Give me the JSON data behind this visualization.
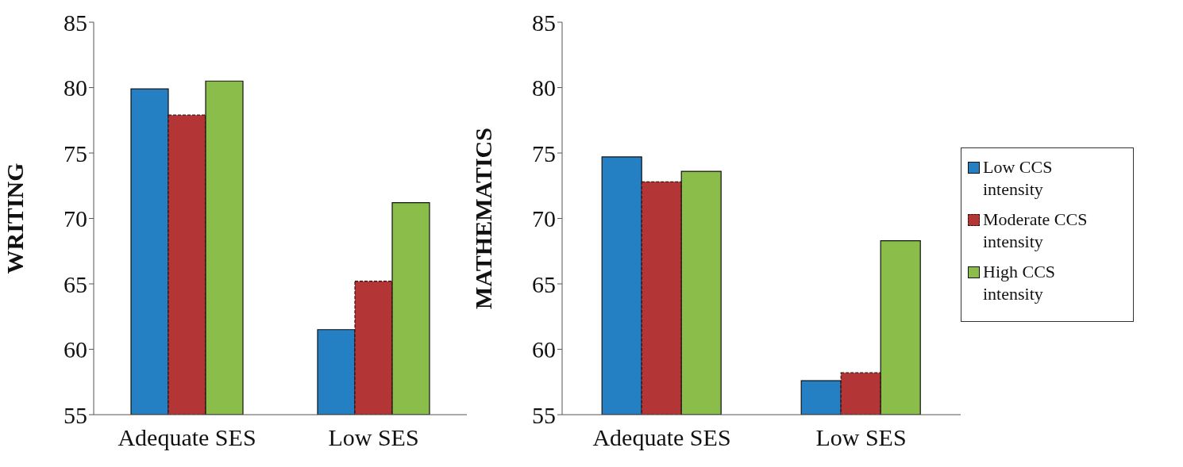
{
  "chart_data": [
    {
      "type": "bar",
      "ylabel": "WRITING",
      "categories": [
        "Adequate SES",
        "Low SES"
      ],
      "ylim": [
        55,
        85
      ],
      "yticks": [
        55,
        60,
        65,
        70,
        75,
        80,
        85
      ],
      "grid": false,
      "legend": false,
      "series": [
        {
          "color": "#2580c3",
          "values": [
            79.9,
            61.5
          ]
        },
        {
          "color": "#b33535",
          "values": [
            77.9,
            65.2
          ],
          "line_style": "dashed"
        },
        {
          "color": "#8bbd4a",
          "values": [
            80.5,
            71.2
          ]
        }
      ]
    },
    {
      "type": "bar",
      "ylabel": "MATHEMATICS",
      "categories": [
        "Adequate SES",
        "Low SES"
      ],
      "ylim": [
        55,
        85
      ],
      "yticks": [
        55,
        60,
        65,
        70,
        75,
        80,
        85
      ],
      "grid": false,
      "legend": "right",
      "series": [
        {
          "name": "Low CCS intensity",
          "color": "#2580c3",
          "values": [
            74.7,
            57.6
          ]
        },
        {
          "name": "Moderate CCS intensity",
          "color": "#b33535",
          "values": [
            72.8,
            58.2
          ],
          "line_style": "dashed"
        },
        {
          "name": "High CCS intensity",
          "color": "#8bbd4a",
          "values": [
            73.6,
            68.3
          ]
        }
      ]
    }
  ]
}
